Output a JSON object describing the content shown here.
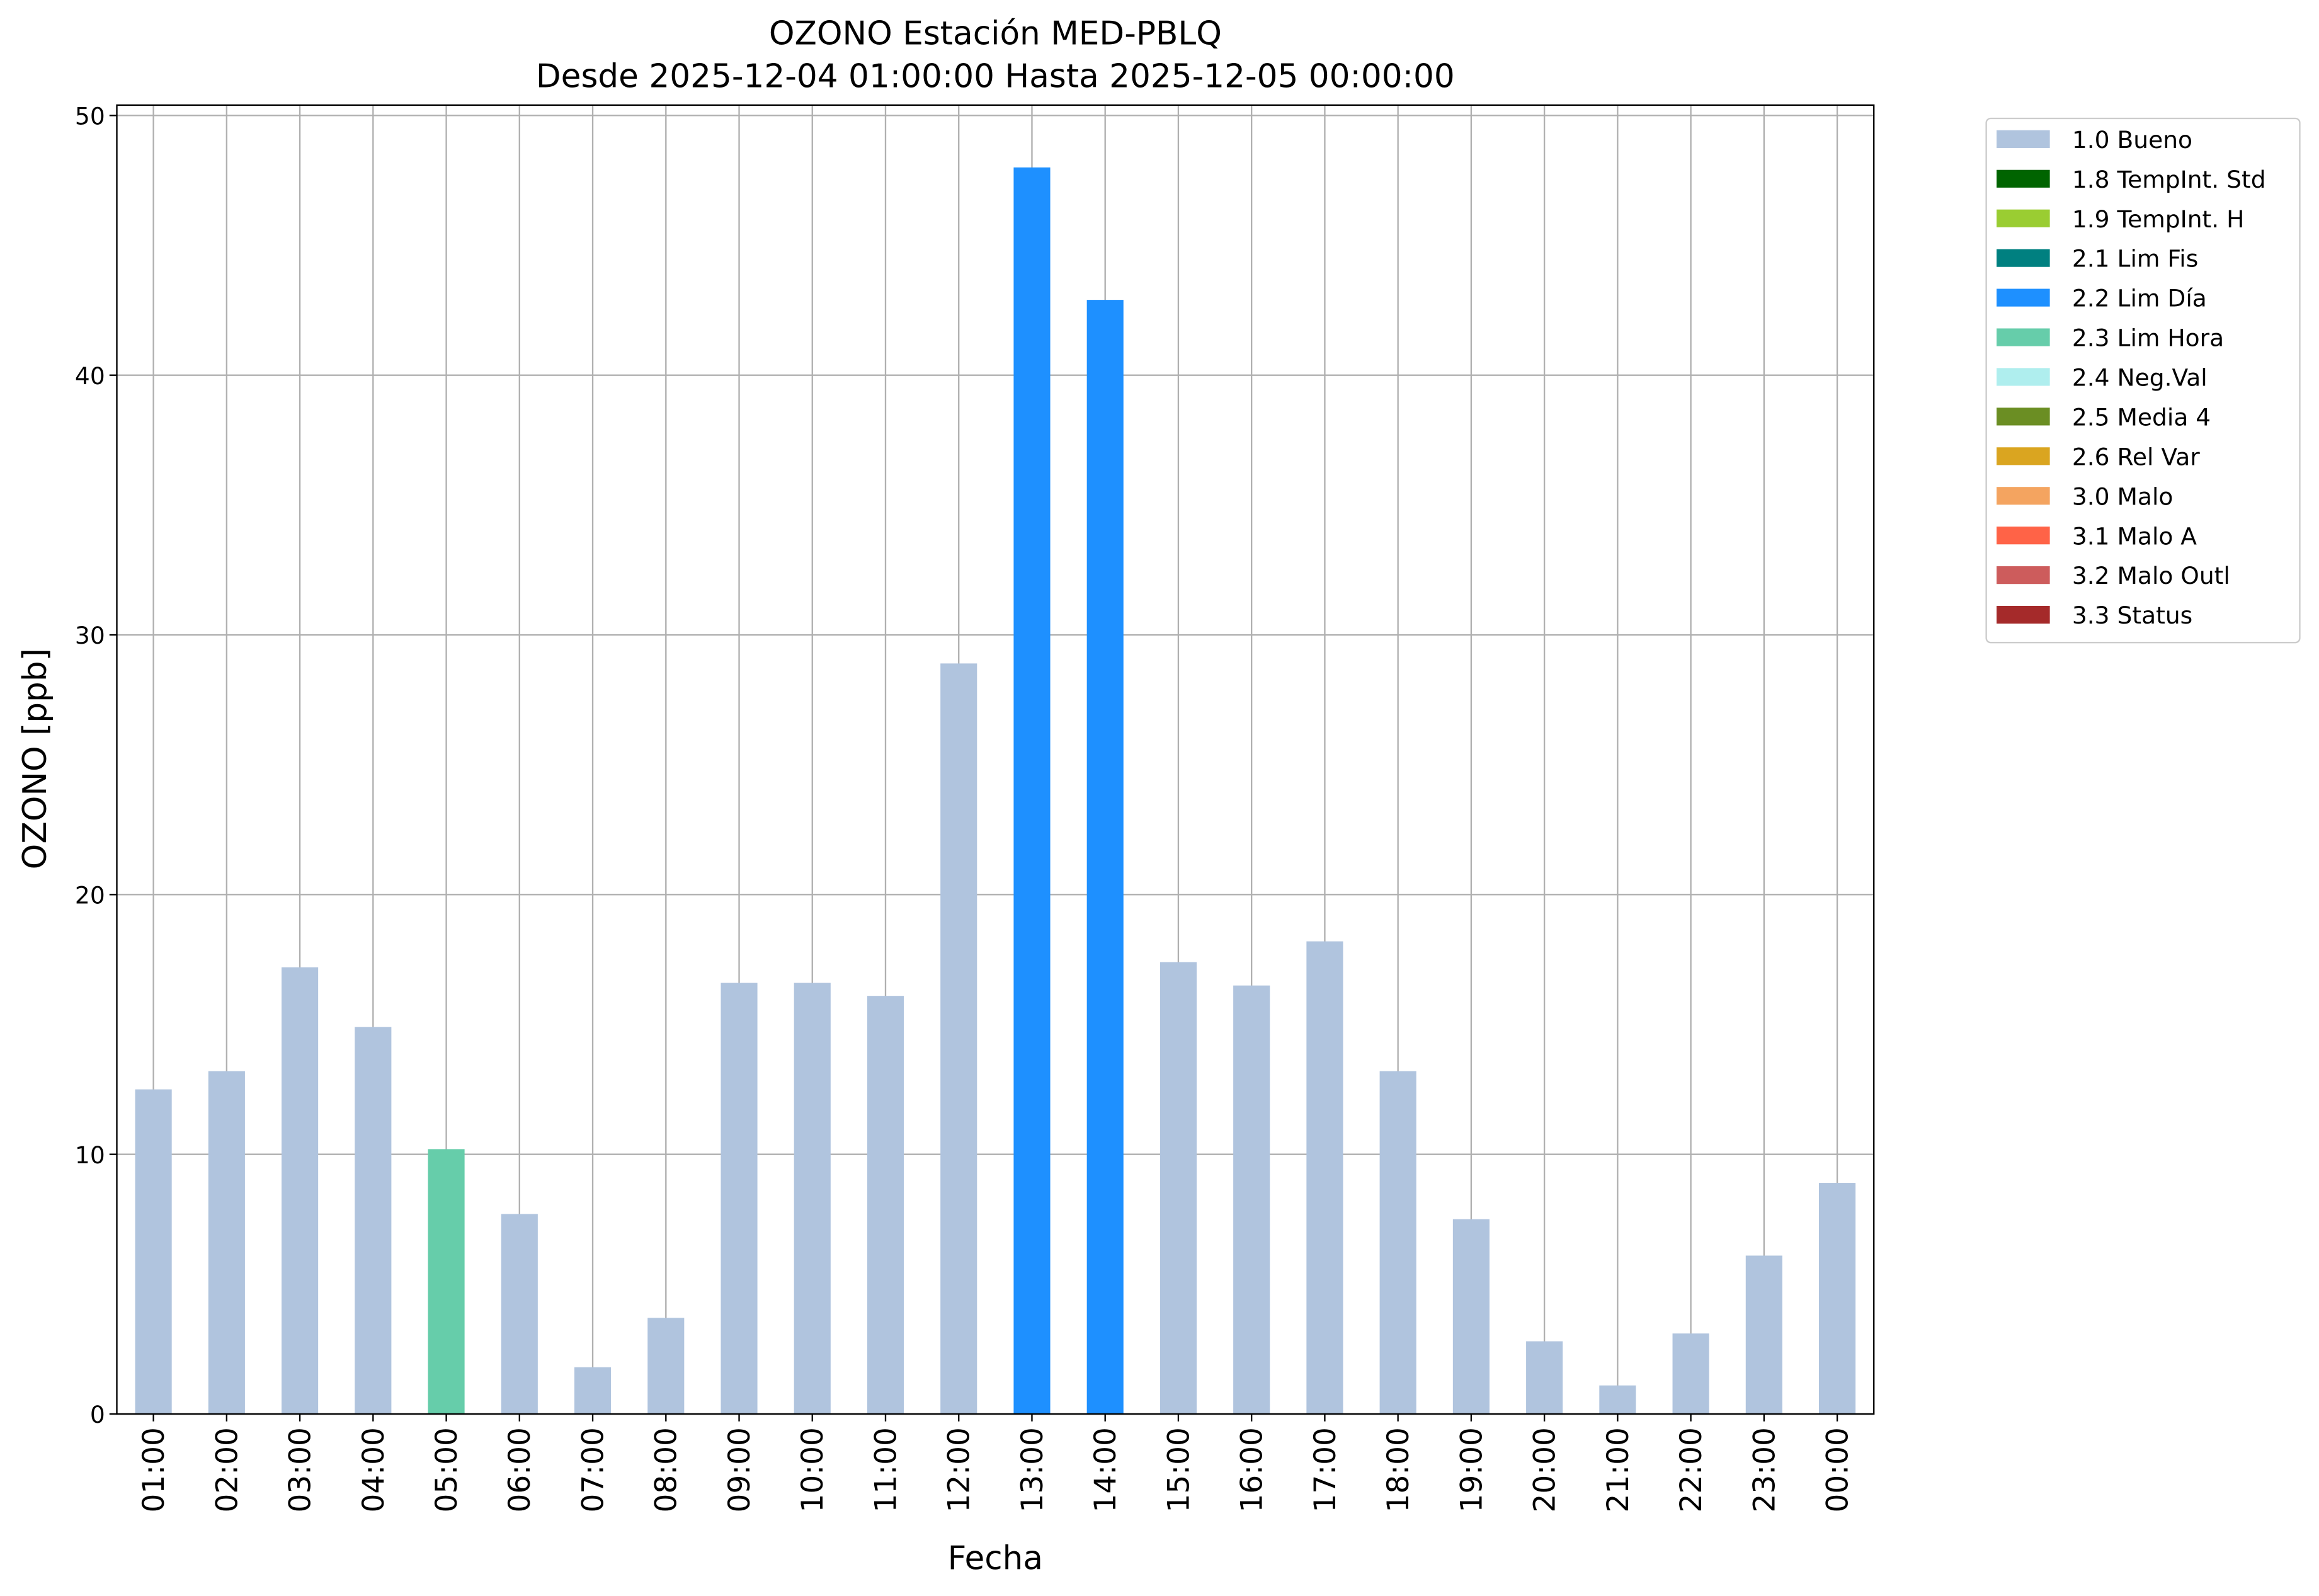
{
  "chart_data": {
    "type": "bar",
    "title": "OZONO Estación MED-PBLQ",
    "subtitle": "Desde 2025-12-04 01:00:00 Hasta 2025-12-05 00:00:00",
    "x_label": "Fecha",
    "y_label": "OZONO [ppb]",
    "categories": [
      "01:00",
      "02:00",
      "03:00",
      "04:00",
      "05:00",
      "06:00",
      "07:00",
      "08:00",
      "09:00",
      "10:00",
      "11:00",
      "12:00",
      "13:00",
      "14:00",
      "15:00",
      "16:00",
      "17:00",
      "18:00",
      "19:00",
      "20:00",
      "21:00",
      "22:00",
      "23:00",
      "00:00"
    ],
    "series": [
      {
        "name": "1.0 Bueno",
        "color": "#b0c4de",
        "values": [
          12.5,
          13.2,
          17.2,
          14.9,
          null,
          7.7,
          1.8,
          3.7,
          16.6,
          16.6,
          16.1,
          28.9,
          null,
          null,
          17.4,
          16.5,
          18.2,
          13.2,
          7.5,
          2.8,
          1.1,
          3.1,
          6.1,
          8.9
        ]
      },
      {
        "name": "1.8 TempInt. Std",
        "color": "#006400",
        "values": [
          null,
          null,
          null,
          null,
          null,
          null,
          null,
          null,
          null,
          null,
          null,
          null,
          null,
          null,
          null,
          null,
          null,
          null,
          null,
          null,
          null,
          null,
          null,
          null
        ]
      },
      {
        "name": "1.9 TempInt. H",
        "color": "#9acd32",
        "values": [
          null,
          null,
          null,
          null,
          null,
          null,
          null,
          null,
          null,
          null,
          null,
          null,
          null,
          null,
          null,
          null,
          null,
          null,
          null,
          null,
          null,
          null,
          null,
          null
        ]
      },
      {
        "name": "2.1 Lim Fis",
        "color": "#008080",
        "values": [
          null,
          null,
          null,
          null,
          null,
          null,
          null,
          null,
          null,
          null,
          null,
          null,
          null,
          null,
          null,
          null,
          null,
          null,
          null,
          null,
          null,
          null,
          null,
          null
        ]
      },
      {
        "name": "2.2 Lim Día",
        "color": "#1e90ff",
        "values": [
          null,
          null,
          null,
          null,
          null,
          null,
          null,
          null,
          null,
          null,
          null,
          null,
          48.0,
          42.9,
          null,
          null,
          null,
          null,
          null,
          null,
          null,
          null,
          null,
          null
        ]
      },
      {
        "name": "2.3 Lim Hora",
        "color": "#66cdaa",
        "values": [
          null,
          null,
          null,
          null,
          10.2,
          null,
          null,
          null,
          null,
          null,
          null,
          null,
          null,
          null,
          null,
          null,
          null,
          null,
          null,
          null,
          null,
          null,
          null,
          null
        ]
      },
      {
        "name": "2.4 Neg.Val",
        "color": "#afeeee",
        "values": [
          null,
          null,
          null,
          null,
          null,
          null,
          null,
          null,
          null,
          null,
          null,
          null,
          null,
          null,
          null,
          null,
          null,
          null,
          null,
          null,
          null,
          null,
          null,
          null
        ]
      },
      {
        "name": "2.5 Media 4",
        "color": "#6b8e23",
        "values": [
          null,
          null,
          null,
          null,
          null,
          null,
          null,
          null,
          null,
          null,
          null,
          null,
          null,
          null,
          null,
          null,
          null,
          null,
          null,
          null,
          null,
          null,
          null,
          null
        ]
      },
      {
        "name": "2.6 Rel Var",
        "color": "#daa520",
        "values": [
          null,
          null,
          null,
          null,
          null,
          null,
          null,
          null,
          null,
          null,
          null,
          null,
          null,
          null,
          null,
          null,
          null,
          null,
          null,
          null,
          null,
          null,
          null,
          null
        ]
      },
      {
        "name": "3.0 Malo",
        "color": "#f4a460",
        "values": [
          null,
          null,
          null,
          null,
          null,
          null,
          null,
          null,
          null,
          null,
          null,
          null,
          null,
          null,
          null,
          null,
          null,
          null,
          null,
          null,
          null,
          null,
          null,
          null
        ]
      },
      {
        "name": "3.1 Malo A",
        "color": "#ff6347",
        "values": [
          null,
          null,
          null,
          null,
          null,
          null,
          null,
          null,
          null,
          null,
          null,
          null,
          null,
          null,
          null,
          null,
          null,
          null,
          null,
          null,
          null,
          null,
          null,
          null
        ]
      },
      {
        "name": "3.2 Malo Outl",
        "color": "#cd5c5c",
        "values": [
          null,
          null,
          null,
          null,
          null,
          null,
          null,
          null,
          null,
          null,
          null,
          null,
          null,
          null,
          null,
          null,
          null,
          null,
          null,
          null,
          null,
          null,
          null,
          null
        ]
      },
      {
        "name": "3.3 Status",
        "color": "#a52a2a",
        "values": [
          null,
          null,
          null,
          null,
          null,
          null,
          null,
          null,
          null,
          null,
          null,
          null,
          null,
          null,
          null,
          null,
          null,
          null,
          null,
          null,
          null,
          null,
          null,
          null
        ]
      }
    ],
    "ylim": [
      0,
      50.4
    ],
    "yticks": [
      0,
      10,
      20,
      30,
      40,
      50
    ],
    "grid": true,
    "legend": "outside-upper-right"
  }
}
